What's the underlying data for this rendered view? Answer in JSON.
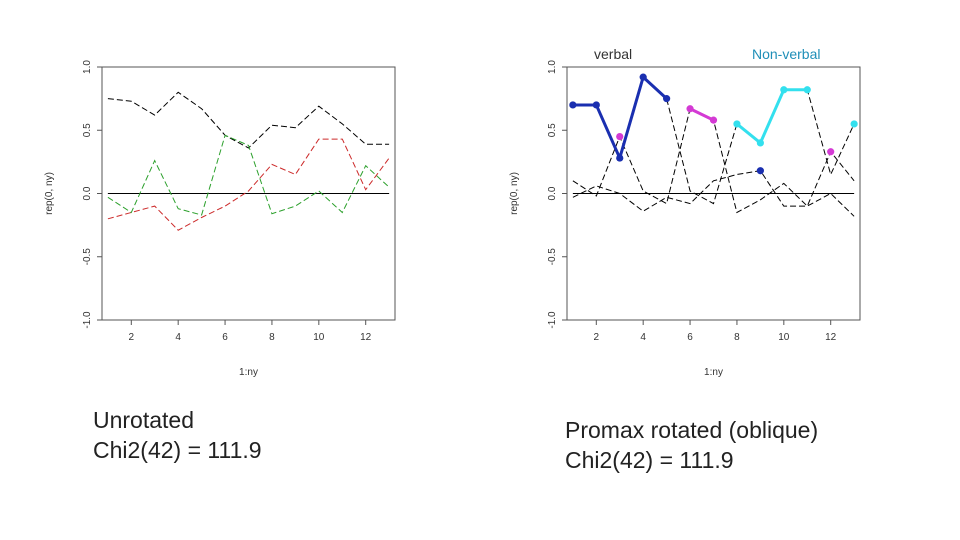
{
  "header": {
    "verbal_label": "verbal",
    "nonverbal_label": "Non-verbal"
  },
  "captions": {
    "left_line1": "Unrotated",
    "left_line2": "Chi2(42) = 111.9",
    "right_line1": "Promax rotated (oblique)",
    "right_line2": "Chi2(42) = 111.9"
  },
  "colors": {
    "verbal_highlight": "#1a2fb0",
    "verbal_secondary": "#d43ad4",
    "nonverbal_highlight": "#33e0ee",
    "series_black": "#000000",
    "series_red": "#cc2a2a",
    "series_green": "#2ca02c"
  },
  "chart_data": [
    {
      "type": "line",
      "title": "",
      "xlabel": "1:ny",
      "ylabel": "rep(0, ny)",
      "xlim": [
        1,
        13
      ],
      "ylim": [
        -1.0,
        1.0
      ],
      "xticks": [
        "2",
        "4",
        "6",
        "8",
        "10",
        "12"
      ],
      "yticks": [
        "-1.0",
        "-0.5",
        "0.0",
        "0.5",
        "1.0"
      ],
      "x": [
        1,
        2,
        3,
        4,
        5,
        6,
        7,
        8,
        9,
        10,
        11,
        12,
        13
      ],
      "series": [
        {
          "color": "#000000",
          "values": [
            0.75,
            0.73,
            0.62,
            0.8,
            0.67,
            0.46,
            0.36,
            0.54,
            0.52,
            0.69,
            0.55,
            0.39,
            0.39
          ]
        },
        {
          "color": "#cc2a2a",
          "values": [
            -0.2,
            -0.15,
            -0.1,
            -0.29,
            -0.19,
            -0.1,
            0.02,
            0.23,
            0.15,
            0.43,
            0.43,
            0.03,
            0.28
          ]
        },
        {
          "color": "#2ca02c",
          "values": [
            -0.03,
            -0.15,
            0.26,
            -0.12,
            -0.17,
            0.46,
            0.38,
            -0.16,
            -0.1,
            0.02,
            -0.15,
            0.22,
            0.05
          ]
        }
      ]
    },
    {
      "type": "line",
      "title": "",
      "xlabel": "1:ny",
      "ylabel": "rep(0, ny)",
      "xlim": [
        1,
        13
      ],
      "ylim": [
        -1.0,
        1.0
      ],
      "xticks": [
        "2",
        "4",
        "6",
        "8",
        "10",
        "12"
      ],
      "yticks": [
        "-1.0",
        "-0.5",
        "0.0",
        "0.5",
        "1.0"
      ],
      "x": [
        1,
        2,
        3,
        4,
        5,
        6,
        7,
        8,
        9,
        10,
        11,
        12,
        13
      ],
      "series": [
        {
          "color": "#000000",
          "values": [
            0.7,
            0.7,
            0.28,
            0.92,
            0.75,
            0.02,
            -0.08,
            0.55,
            0.4,
            0.82,
            0.82,
            0.15,
            0.55
          ]
        },
        {
          "color": "#000000",
          "values": [
            0.1,
            -0.02,
            0.45,
            0.02,
            -0.08,
            0.67,
            0.58,
            -0.15,
            -0.05,
            0.08,
            -0.1,
            0.33,
            0.1
          ]
        },
        {
          "color": "#000000",
          "values": [
            -0.03,
            0.06,
            0.0,
            -0.14,
            -0.03,
            -0.08,
            0.1,
            0.15,
            0.18,
            -0.1,
            -0.1,
            0.0,
            -0.18
          ]
        }
      ],
      "highlights": [
        {
          "role": "verbal",
          "color": "#1a2fb0",
          "points": [
            [
              1,
              0.7
            ],
            [
              2,
              0.7
            ],
            [
              3,
              0.28
            ],
            [
              4,
              0.92
            ],
            [
              5,
              0.75
            ],
            [
              9,
              0.18
            ]
          ],
          "segments": [
            [
              0,
              1
            ],
            [
              1,
              2
            ],
            [
              2,
              3
            ],
            [
              3,
              4
            ]
          ]
        },
        {
          "role": "verbal-secondary",
          "color": "#d43ad4",
          "points": [
            [
              3,
              0.45
            ],
            [
              6,
              0.67
            ],
            [
              7,
              0.58
            ],
            [
              12,
              0.33
            ]
          ],
          "segments": [
            [
              1,
              2
            ]
          ]
        },
        {
          "role": "nonverbal",
          "color": "#33e0ee",
          "points": [
            [
              8,
              0.55
            ],
            [
              9,
              0.4
            ],
            [
              10,
              0.82
            ],
            [
              11,
              0.82
            ],
            [
              13,
              0.55
            ]
          ],
          "segments": [
            [
              0,
              1
            ],
            [
              1,
              2
            ],
            [
              2,
              3
            ]
          ]
        }
      ]
    }
  ]
}
